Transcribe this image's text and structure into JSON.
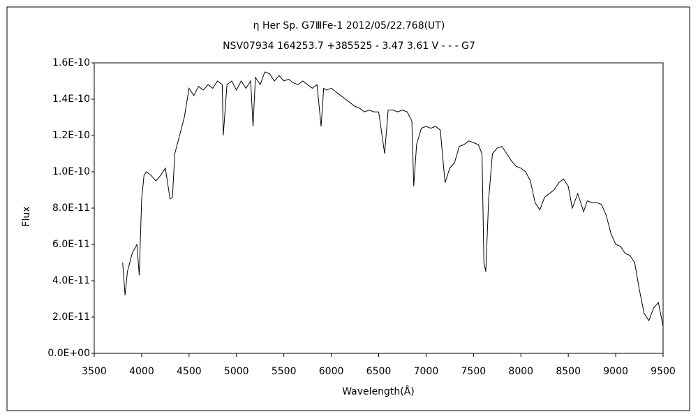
{
  "chart_data": {
    "type": "line",
    "title": "η Her   Sp. G7ⅢFe-1   2012/05/22.768(UT)",
    "subtitle": "NSV07934 164253.7 +385525 - 3.47 3.61 V - - - G7",
    "x_label": "Wavelength(Å)",
    "y_label": "Flux",
    "color": "#000000",
    "xlim": [
      3500,
      9500
    ],
    "xticks": [
      3500,
      4000,
      4500,
      5000,
      5500,
      6000,
      6500,
      7000,
      7500,
      8000,
      8500,
      9000,
      9500
    ],
    "ylim": [
      0,
      1.6e-10
    ],
    "yticks": [
      {
        "value": 0,
        "label": "0.0E+00"
      },
      {
        "value": 2e-11,
        "label": "2.0E-11"
      },
      {
        "value": 4e-11,
        "label": "4.0E-11"
      },
      {
        "value": 6e-11,
        "label": "6.0E-11"
      },
      {
        "value": 8e-11,
        "label": "8.0E-11"
      },
      {
        "value": 1e-10,
        "label": "1.0E-10"
      },
      {
        "value": 1.2e-10,
        "label": "1.2E-10"
      },
      {
        "value": 1.4e-10,
        "label": "1.4E-10"
      },
      {
        "value": 1.6e-10,
        "label": "1.6E-10"
      }
    ],
    "x": [
      3800,
      3825,
      3850,
      3900,
      3950,
      3975,
      4000,
      4025,
      4050,
      4100,
      4150,
      4200,
      4250,
      4300,
      4325,
      4350,
      4400,
      4450,
      4500,
      4550,
      4600,
      4650,
      4700,
      4750,
      4800,
      4850,
      4861,
      4900,
      4950,
      5000,
      5050,
      5100,
      5150,
      5175,
      5200,
      5250,
      5300,
      5350,
      5400,
      5450,
      5500,
      5550,
      5600,
      5650,
      5700,
      5750,
      5800,
      5850,
      5893,
      5920,
      5950,
      6000,
      6050,
      6100,
      6150,
      6200,
      6250,
      6300,
      6350,
      6400,
      6450,
      6500,
      6563,
      6600,
      6650,
      6700,
      6750,
      6800,
      6850,
      6870,
      6900,
      6950,
      7000,
      7050,
      7100,
      7150,
      7200,
      7250,
      7300,
      7350,
      7400,
      7450,
      7500,
      7550,
      7590,
      7610,
      7630,
      7660,
      7700,
      7750,
      7800,
      7850,
      7900,
      7950,
      8000,
      8050,
      8100,
      8150,
      8200,
      8250,
      8300,
      8350,
      8400,
      8450,
      8500,
      8542,
      8600,
      8662,
      8700,
      8750,
      8800,
      8850,
      8900,
      8950,
      9000,
      9050,
      9100,
      9150,
      9200,
      9250,
      9300,
      9350,
      9400,
      9450,
      9500
    ],
    "values": [
      5e-11,
      3.2e-11,
      4.5e-11,
      5.5e-11,
      6e-11,
      4.3e-11,
      8.5e-11,
      9.8e-11,
      1e-10,
      9.8e-11,
      9.5e-11,
      9.8e-11,
      1.02e-10,
      8.5e-11,
      8.6e-11,
      1.1e-10,
      1.2e-10,
      1.3e-10,
      1.46e-10,
      1.42e-10,
      1.47e-10,
      1.45e-10,
      1.48e-10,
      1.46e-10,
      1.5e-10,
      1.48e-10,
      1.2e-10,
      1.48e-10,
      1.5e-10,
      1.45e-10,
      1.5e-10,
      1.46e-10,
      1.5e-10,
      1.25e-10,
      1.52e-10,
      1.48e-10,
      1.55e-10,
      1.54e-10,
      1.5e-10,
      1.53e-10,
      1.5e-10,
      1.51e-10,
      1.49e-10,
      1.48e-10,
      1.5e-10,
      1.48e-10,
      1.46e-10,
      1.48e-10,
      1.25e-10,
      1.46e-10,
      1.45e-10,
      1.46e-10,
      1.44e-10,
      1.42e-10,
      1.4e-10,
      1.38e-10,
      1.36e-10,
      1.35e-10,
      1.33e-10,
      1.34e-10,
      1.33e-10,
      1.33e-10,
      1.1e-10,
      1.34e-10,
      1.34e-10,
      1.33e-10,
      1.34e-10,
      1.33e-10,
      1.28e-10,
      9.2e-11,
      1.15e-10,
      1.24e-10,
      1.25e-10,
      1.24e-10,
      1.25e-10,
      1.23e-10,
      9.4e-11,
      1.02e-10,
      1.05e-10,
      1.14e-10,
      1.15e-10,
      1.17e-10,
      1.16e-10,
      1.15e-10,
      1.1e-10,
      5e-11,
      4.5e-11,
      8.5e-11,
      1.1e-10,
      1.13e-10,
      1.14e-10,
      1.1e-10,
      1.06e-10,
      1.03e-10,
      1.02e-10,
      1e-10,
      9.5e-11,
      8.3e-11,
      7.9e-11,
      8.6e-11,
      8.8e-11,
      9e-11,
      9.4e-11,
      9.6e-11,
      9.2e-11,
      8e-11,
      8.8e-11,
      7.8e-11,
      8.4e-11,
      8.3e-11,
      8.3e-11,
      8.2e-11,
      7.6e-11,
      6.6e-11,
      6e-11,
      5.9e-11,
      5.5e-11,
      5.4e-11,
      5e-11,
      3.5e-11,
      2.2e-11,
      1.8e-11,
      2.5e-11,
      2.8e-11,
      1.5e-11
    ]
  }
}
